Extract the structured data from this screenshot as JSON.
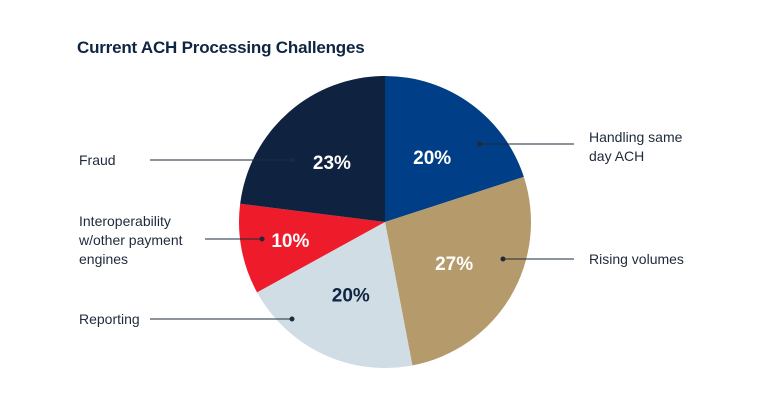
{
  "chart_data": {
    "type": "pie",
    "title": "Current ACH Processing Challenges",
    "slices": [
      {
        "label": "Handling same day ACH",
        "value": 20,
        "display": "20%",
        "color": "#003f87",
        "text_color": "#ffffff"
      },
      {
        "label": "Rising volumes",
        "value": 27,
        "display": "27%",
        "color": "#b59a6b",
        "text_color": "#ffffff"
      },
      {
        "label": "Reporting",
        "value": 20,
        "display": "20%",
        "color": "#d1dde5",
        "text_color": "#0f2544"
      },
      {
        "label": "Interoperability w/other payment engines",
        "value": 10,
        "display": "10%",
        "color": "#ee1b2a",
        "text_color": "#ffffff"
      },
      {
        "label": "Fraud",
        "value": 23,
        "display": "23%",
        "color": "#0f2341",
        "text_color": "#ffffff"
      }
    ],
    "start_angle_deg": 0,
    "direction": "clockwise",
    "legend": "callout labels"
  },
  "labels": {
    "handling": [
      "Handling same",
      "day ACH"
    ],
    "rising": "Rising volumes",
    "reporting": "Reporting",
    "interop": [
      "Interoperability",
      "w/other payment",
      "engines"
    ],
    "fraud": "Fraud"
  }
}
